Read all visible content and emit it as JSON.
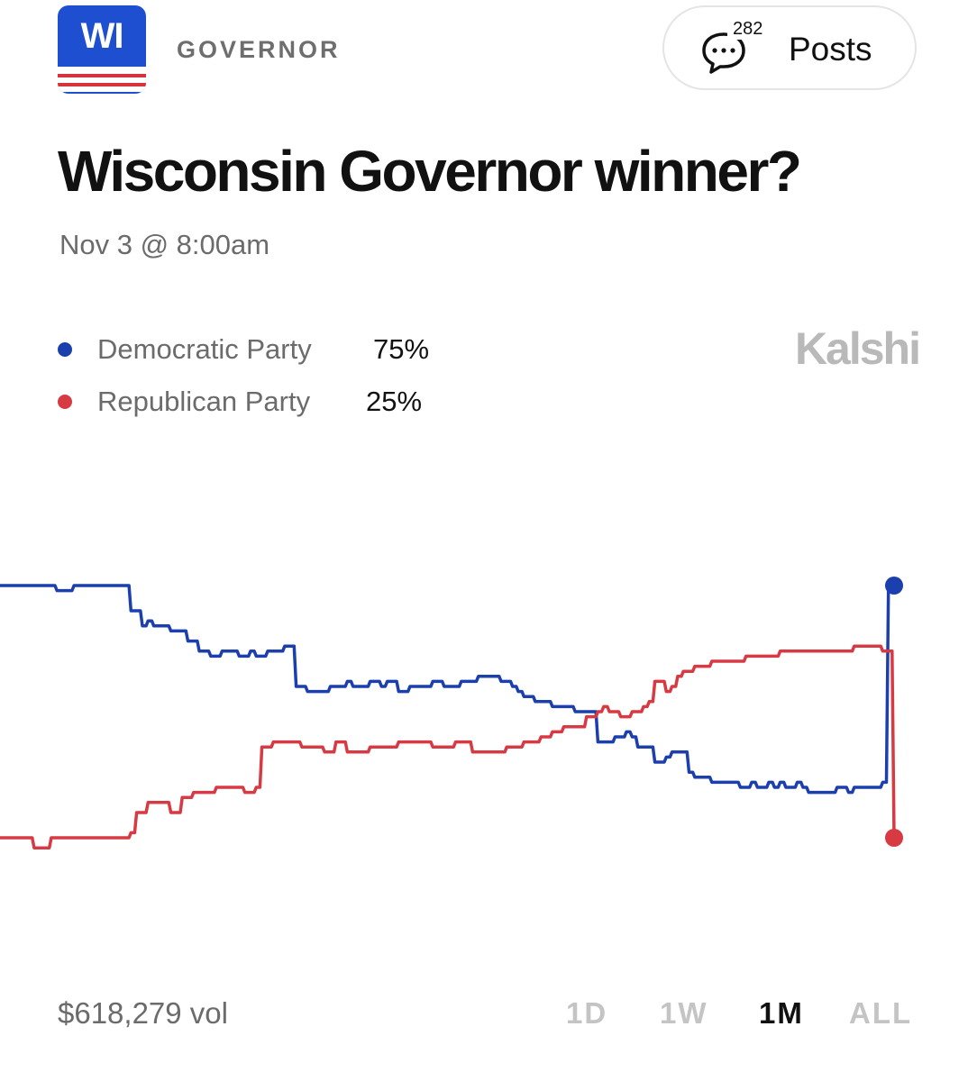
{
  "header": {
    "state_code": "WI",
    "category": "GOVERNOR",
    "posts_count": "282",
    "posts_label": "Posts"
  },
  "market": {
    "title": "Wisconsin Governor winner?",
    "date": "Nov 3 @ 8:00am",
    "brand": "Kalshi"
  },
  "legend": [
    {
      "name": "Democratic Party",
      "value": "75%",
      "color": "#1c3fae"
    },
    {
      "name": "Republican Party",
      "value": "25%",
      "color": "#d83a44"
    }
  ],
  "footer": {
    "volume": "$618,279 vol",
    "ranges": [
      "1D",
      "1W",
      "1M",
      "ALL"
    ],
    "active_range": "1M"
  },
  "chart_data": {
    "type": "line",
    "ylim": [
      0,
      100
    ],
    "series": [
      {
        "name": "Democratic Party",
        "color": "#1c3fae",
        "values": [
          75,
          75,
          75,
          75,
          75,
          75,
          75,
          75,
          75,
          75,
          74,
          74,
          74,
          75,
          75,
          75,
          75,
          75,
          75,
          75,
          75,
          75,
          75,
          70,
          70,
          67,
          68,
          67,
          67,
          67,
          66,
          66,
          66,
          64,
          64,
          62,
          62,
          61,
          61,
          62,
          62,
          62,
          61,
          61,
          62,
          61,
          61,
          62,
          62,
          62,
          63,
          63,
          55,
          55,
          54,
          54,
          54,
          54,
          55,
          55,
          55,
          56,
          55,
          55,
          55,
          56,
          56,
          55,
          56,
          56,
          54,
          54,
          55,
          55,
          55,
          55,
          56,
          56,
          55,
          55,
          55,
          56,
          56,
          56,
          57,
          57,
          57,
          57,
          56,
          56,
          55,
          54,
          53,
          53,
          52,
          52,
          52,
          51,
          51,
          51,
          51,
          50,
          50,
          50,
          50,
          44,
          44,
          44,
          45,
          45,
          46,
          45,
          43,
          43,
          43,
          40,
          40,
          41,
          42,
          42,
          42,
          38,
          37,
          37,
          37,
          36,
          36,
          36,
          36,
          36,
          35,
          35,
          36,
          35,
          35,
          36,
          35,
          36,
          35,
          35,
          36,
          35,
          34,
          34,
          34,
          34,
          34,
          35,
          35,
          34,
          35,
          35,
          35,
          35,
          35,
          36,
          74,
          75
        ]
      },
      {
        "name": "Republican Party",
        "color": "#d83a44",
        "values": [
          25,
          25,
          25,
          25,
          25,
          25,
          23,
          23,
          23,
          25,
          25,
          25,
          25,
          25,
          25,
          25,
          25,
          25,
          25,
          25,
          25,
          25,
          25,
          26,
          30,
          30,
          32,
          32,
          32,
          32,
          30,
          30,
          33,
          33,
          34,
          34,
          34,
          34,
          35,
          35,
          35,
          35,
          35,
          34,
          34,
          35,
          43,
          43,
          44,
          44,
          44,
          44,
          44,
          43,
          43,
          43,
          43,
          42,
          42,
          44,
          44,
          42,
          42,
          42,
          42,
          43,
          43,
          43,
          43,
          43,
          44,
          44,
          44,
          44,
          44,
          44,
          43,
          43,
          43,
          43,
          44,
          44,
          44,
          42,
          42,
          42,
          42,
          42,
          42,
          43,
          43,
          43,
          44,
          44,
          44,
          45,
          45,
          46,
          46,
          47,
          47,
          47,
          47,
          49,
          49,
          50,
          51,
          50,
          50,
          49,
          49,
          50,
          50,
          51,
          52,
          56,
          56,
          54,
          55,
          57,
          58,
          58,
          59,
          59,
          59,
          60,
          60,
          60,
          60,
          60,
          60,
          61,
          61,
          61,
          61,
          61,
          61,
          62,
          62,
          62,
          62,
          62,
          62,
          62,
          62,
          62,
          62,
          62,
          62,
          62,
          63,
          63,
          63,
          63,
          63,
          62,
          62,
          25
        ]
      }
    ]
  }
}
